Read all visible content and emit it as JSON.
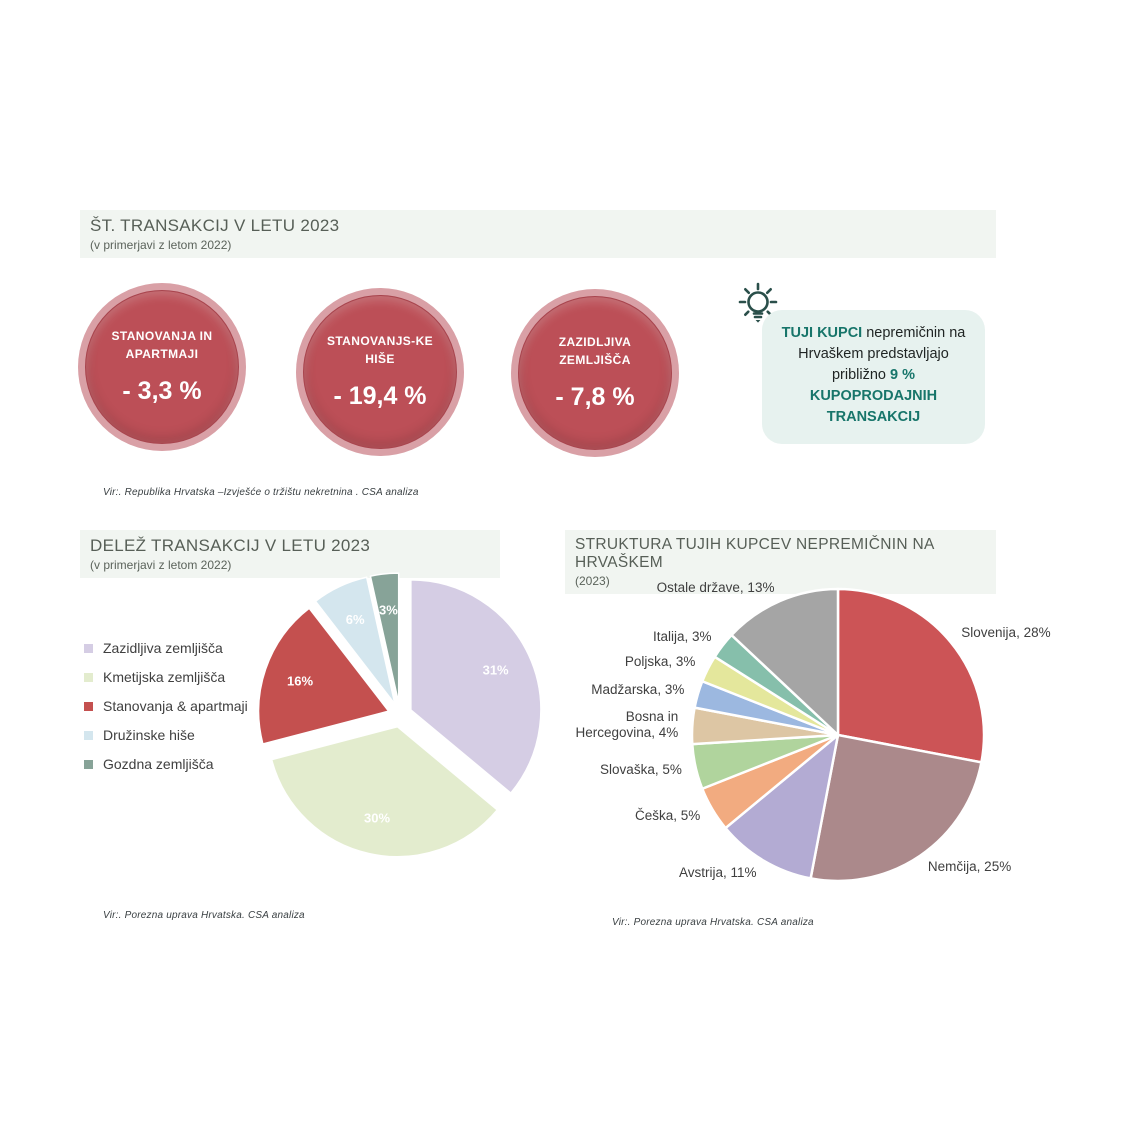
{
  "section1": {
    "title": "ŠT. TRANSAKCIJ V LETU 2023",
    "subtitle": "(v primerjavi z letom 2022)",
    "circles": [
      {
        "label": "STANOVANJA IN APARTMAJI",
        "value": "- 3,3 %"
      },
      {
        "label": "STANOVANJS-KE HIŠE",
        "value": "- 19,4 %"
      },
      {
        "label": "ZAZIDLJIVA ZEMLJIŠČA",
        "value": "- 7,8 %"
      }
    ],
    "callout": {
      "lead": "TUJI KUPCI",
      "body": " nepremičnin na Hrvaškem predstavljajo približno ",
      "pct": "9 %",
      "tail": " KUPOPRODAJNIH TRANSAKCIJ",
      "accent_color": "#17756a",
      "box_color": "#e7f2ef"
    },
    "circle_color": "#bc4f57",
    "circle_ring_color": "#d9a0a6",
    "source": "Vir:. Republika Hrvatska –Izvješće o tržištu nekretnina . CSA analiza"
  },
  "chart_data": [
    {
      "type": "pie",
      "title": "DELEŽ TRANSAKCIJ V LETU 2023",
      "subtitle": "(v primerjavi z letom 2022)",
      "legend_position": "left",
      "exploded": true,
      "labels": "inside-percent",
      "label_color": "#ffffff",
      "slices": [
        {
          "label": "Zazidljiva zemljišča",
          "value": 31,
          "color": "#d5cde4"
        },
        {
          "label": "Kmetijska zemljišča",
          "value": 30,
          "color": "#e3ecce"
        },
        {
          "label": "Stanovanja & apartmaji",
          "value": 16,
          "color": "#c4504f"
        },
        {
          "label": "Družinske hiše",
          "value": 6,
          "color": "#d4e6ee"
        },
        {
          "label": "Gozdna zemljišča",
          "value": 3,
          "color": "#87a398"
        }
      ],
      "source": "Vir:. Porezna uprava  Hrvatska. CSA analiza"
    },
    {
      "type": "pie",
      "title": "STRUKTURA TUJIH KUPCEV NEPREMIČNIN NA HRVAŠKEM",
      "subtitle": "(2023)",
      "legend_position": "none",
      "exploded": false,
      "labels": "outside-name-percent",
      "label_color": "#3f3f3f",
      "slices": [
        {
          "label": "Slovenija",
          "value": 28,
          "color": "#cc5456"
        },
        {
          "label": "Nemčija",
          "value": 25,
          "color": "#ab898b"
        },
        {
          "label": "Avstrija",
          "value": 11,
          "color": "#b3abd3"
        },
        {
          "label": "Češka",
          "value": 5,
          "color": "#f2ab80"
        },
        {
          "label": "Slovaška",
          "value": 5,
          "color": "#b0d49d"
        },
        {
          "label": "Bosna in Hercegovina",
          "value": 4,
          "color": "#ddc6a4"
        },
        {
          "label": "Madžarska",
          "value": 3,
          "color": "#9cb8e0"
        },
        {
          "label": "Poljska",
          "value": 3,
          "color": "#e4e79c"
        },
        {
          "label": "Italija",
          "value": 3,
          "color": "#86bfab"
        },
        {
          "label": "Ostale države",
          "value": 13,
          "color": "#a5a5a5"
        }
      ],
      "source": "Vir:. Porezna uprava  Hrvatska. CSA analiza"
    }
  ]
}
